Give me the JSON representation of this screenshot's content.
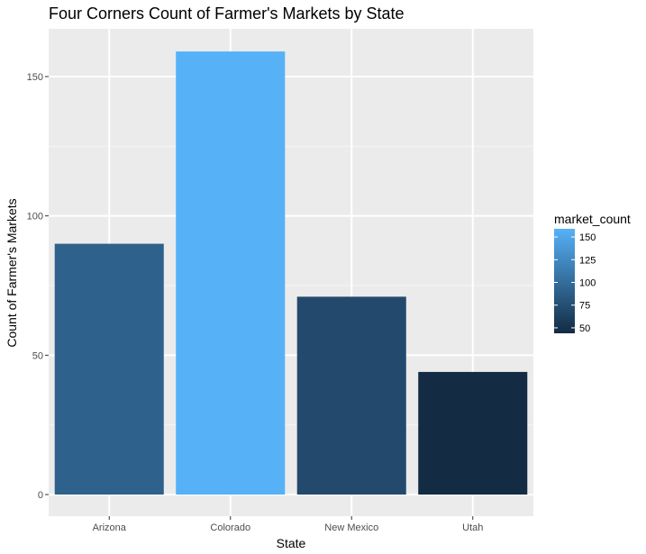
{
  "chart_data": {
    "type": "bar",
    "title": "Four Corners Count of Farmer's Markets by State",
    "xlabel": "State",
    "ylabel": "Count of Farmer's Markets",
    "categories": [
      "Arizona",
      "Colorado",
      "New Mexico",
      "Utah"
    ],
    "values": [
      90,
      159,
      71,
      44
    ],
    "ylim": [
      0,
      165
    ],
    "yticks": [
      0,
      50,
      100,
      150
    ],
    "grid": true,
    "legend": {
      "title": "market_count",
      "placement": "right",
      "range": [
        44,
        159
      ],
      "ticks": [
        50,
        75,
        100,
        125,
        150
      ],
      "low_color": "#132B43",
      "high_color": "#56B1F7"
    },
    "colors": {
      "panel": "#EBEBEB",
      "grid_major": "#FFFFFF",
      "grid_minor": "#F5F5F5",
      "tick_text": "#4D4D4D",
      "tick_mark": "#333333"
    }
  }
}
